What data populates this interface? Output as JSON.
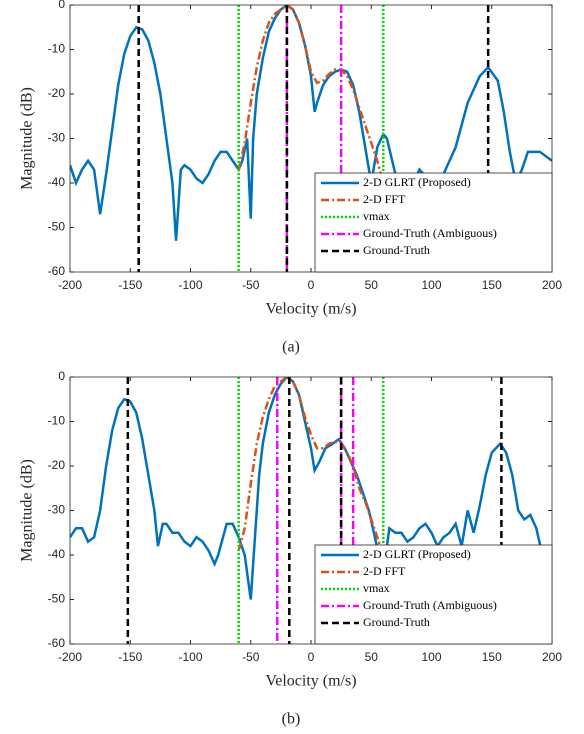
{
  "chart_data": [
    {
      "type": "line",
      "caption": "(a)",
      "xlabel": "Velocity (m/s)",
      "ylabel": "Magnitude (dB)",
      "xlim": [
        -200,
        200
      ],
      "ylim": [
        -60,
        0
      ],
      "xticks": [
        -200,
        -150,
        -100,
        -50,
        0,
        50,
        100,
        150,
        200
      ],
      "yticks": [
        -60,
        -50,
        -40,
        -30,
        -20,
        -10,
        0
      ],
      "legend": "lower right",
      "series": [
        {
          "name": "2-D GLRT (Proposed)",
          "color": "#0072bd",
          "dash": "solid",
          "x": [
            -200,
            -195,
            -190,
            -185,
            -180,
            -175,
            -170,
            -165,
            -160,
            -155,
            -150,
            -145,
            -140,
            -135,
            -130,
            -125,
            -120,
            -115,
            -112,
            -108,
            -105,
            -100,
            -95,
            -90,
            -85,
            -80,
            -75,
            -70,
            -65,
            -60,
            -57,
            -53,
            -50,
            -48,
            -45,
            -40,
            -35,
            -30,
            -25,
            -20,
            -15,
            -10,
            -5,
            0,
            3,
            5,
            10,
            15,
            20,
            25,
            30,
            35,
            40,
            45,
            50,
            55,
            60,
            63,
            70,
            75,
            80,
            85,
            90,
            100,
            110,
            120,
            130,
            140,
            147,
            155,
            160,
            165,
            170,
            175,
            180,
            190,
            200
          ],
          "values": [
            -36,
            -40,
            -37,
            -35,
            -37,
            -47,
            -38,
            -28,
            -18,
            -11,
            -7,
            -5,
            -5.5,
            -8,
            -13,
            -20,
            -30,
            -40,
            -53,
            -37,
            -36,
            -37,
            -39,
            -40,
            -38,
            -35,
            -33,
            -33,
            -35,
            -37,
            -35,
            -30,
            -48,
            -30,
            -20,
            -12,
            -6,
            -3,
            -1,
            0,
            -1,
            -4,
            -9,
            -16,
            -24,
            -22,
            -18,
            -16,
            -15,
            -14.5,
            -15,
            -18,
            -24,
            -32,
            -40,
            -32,
            -29,
            -30,
            -38,
            -45,
            -50,
            -40,
            -37,
            -40,
            -38,
            -32,
            -22,
            -16,
            -14,
            -17,
            -24,
            -33,
            -40,
            -37,
            -33,
            -33,
            -35
          ]
        },
        {
          "name": "2-D FFT",
          "color": "#d95319",
          "dash": "dash-dot",
          "x": [
            -60,
            -55,
            -50,
            -45,
            -40,
            -35,
            -30,
            -25,
            -20,
            -15,
            -10,
            -5,
            0,
            5,
            10,
            15,
            20,
            25,
            30,
            35,
            40,
            45,
            50,
            55,
            60
          ],
          "values": [
            -37,
            -31,
            -22,
            -14,
            -8,
            -4,
            -2,
            -1,
            0,
            -1,
            -4,
            -9,
            -15,
            -17.5,
            -17,
            -15.5,
            -14.5,
            -14.5,
            -16,
            -19,
            -23,
            -27,
            -31,
            -35,
            -40
          ]
        },
        {
          "name": "vmax",
          "color": "#00e000",
          "dash": "dotted",
          "x": [
            -60,
            60
          ]
        },
        {
          "name": "Ground-Truth (Ambiguous)",
          "color": "#ff00ff",
          "dash": "dash-dot",
          "x": [
            -20,
            25
          ]
        },
        {
          "name": "Ground-Truth",
          "color": "#000000",
          "dash": "dashed",
          "x": [
            -143,
            -20,
            147
          ]
        }
      ]
    },
    {
      "type": "line",
      "caption": "(b)",
      "xlabel": "Velocity (m/s)",
      "ylabel": "Magnitude (dB)",
      "xlim": [
        -200,
        200
      ],
      "ylim": [
        -60,
        0
      ],
      "xticks": [
        -200,
        -150,
        -100,
        -50,
        0,
        50,
        100,
        150,
        200
      ],
      "yticks": [
        -60,
        -50,
        -40,
        -30,
        -20,
        -10,
        0
      ],
      "legend": "lower right",
      "series": [
        {
          "name": "2-D GLRT (Proposed)",
          "color": "#0072bd",
          "dash": "solid",
          "x": [
            -200,
            -195,
            -190,
            -185,
            -180,
            -175,
            -170,
            -165,
            -160,
            -155,
            -150,
            -145,
            -140,
            -135,
            -130,
            -127,
            -123,
            -120,
            -115,
            -110,
            -105,
            -100,
            -95,
            -90,
            -85,
            -80,
            -77,
            -73,
            -70,
            -65,
            -60,
            -55,
            -50,
            -47,
            -43,
            -40,
            -35,
            -30,
            -25,
            -20,
            -15,
            -10,
            -5,
            0,
            3,
            7,
            12,
            18,
            23,
            28,
            33,
            38,
            43,
            48,
            53,
            58,
            62,
            65,
            70,
            75,
            80,
            85,
            90,
            95,
            100,
            105,
            110,
            115,
            120,
            125,
            130,
            135,
            140,
            145,
            150,
            157,
            162,
            167,
            172,
            177,
            182,
            187,
            192,
            195
          ],
          "values": [
            -36,
            -34,
            -34,
            -37,
            -36,
            -30,
            -20,
            -12,
            -7,
            -5,
            -5.5,
            -8,
            -14,
            -22,
            -30,
            -38,
            -33,
            -33,
            -35,
            -35,
            -37,
            -38,
            -36,
            -37,
            -39,
            -42,
            -40,
            -36,
            -33,
            -33,
            -36,
            -40,
            -50,
            -38,
            -22,
            -15,
            -8,
            -4,
            -1.5,
            0,
            -1,
            -4,
            -10,
            -16,
            -21,
            -19,
            -16,
            -15,
            -14,
            -16,
            -19,
            -22,
            -26,
            -30,
            -36,
            -42,
            -40,
            -34,
            -35,
            -35,
            -37,
            -36,
            -34,
            -33,
            -35,
            -38,
            -36,
            -35,
            -33,
            -38,
            -30,
            -35,
            -29,
            -22,
            -17,
            -15,
            -17,
            -22,
            -30,
            -32,
            -31,
            -34,
            -40,
            -45
          ]
        },
        {
          "name": "2-D FFT",
          "color": "#d95319",
          "dash": "dash-dot",
          "x": [
            -60,
            -55,
            -50,
            -45,
            -40,
            -35,
            -30,
            -25,
            -20,
            -15,
            -10,
            -5,
            0,
            5,
            10,
            15,
            20,
            25,
            30,
            35,
            40,
            45,
            50,
            55,
            60
          ],
          "values": [
            -39,
            -34,
            -24,
            -15,
            -9,
            -5,
            -2,
            -1,
            0,
            -1,
            -4,
            -9,
            -13,
            -16,
            -16,
            -15,
            -14.5,
            -15,
            -17,
            -20,
            -25,
            -28,
            -32,
            -36,
            -40
          ]
        },
        {
          "name": "vmax",
          "color": "#00e000",
          "dash": "dotted",
          "x": [
            -60,
            60
          ]
        },
        {
          "name": "Ground-Truth (Ambiguous)",
          "color": "#ff00ff",
          "dash": "dash-dot",
          "x": [
            -28,
            25,
            35
          ]
        },
        {
          "name": "Ground-Truth",
          "color": "#000000",
          "dash": "dashed",
          "x": [
            -152,
            -18,
            25,
            158
          ]
        }
      ]
    }
  ]
}
